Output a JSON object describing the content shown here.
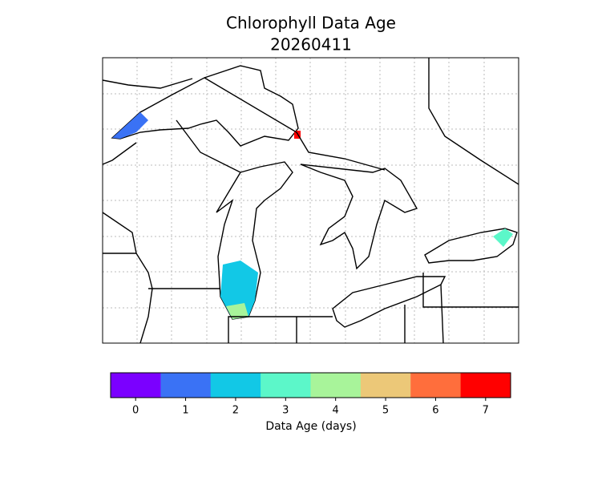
{
  "title": "Chlorophyll Data Age",
  "subtitle": "20260411",
  "colorbar": {
    "label": "Data Age (days)",
    "ticks": [
      0,
      1,
      2,
      3,
      4,
      5,
      6,
      7
    ],
    "colors": [
      "#7b00ff",
      "#3a72f5",
      "#12c8e6",
      "#5cf7c9",
      "#a8f49a",
      "#ecc878",
      "#ff6e3c",
      "#ff0000"
    ]
  }
}
